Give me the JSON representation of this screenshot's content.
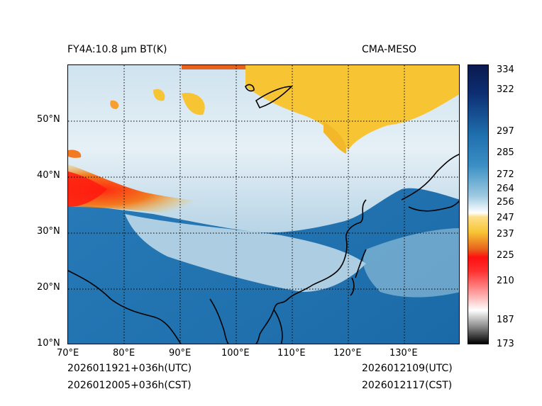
{
  "header": {
    "left_title": "FY4A:10.8 µm BT(K)",
    "right_title": "CMA-MESO"
  },
  "map": {
    "lon_ticks": [
      "70°E",
      "80°E",
      "90°E",
      "100°E",
      "110°E",
      "120°E",
      "130°E"
    ],
    "lat_ticks": [
      "50°N",
      "40°N",
      "30°N",
      "20°N",
      "10°N"
    ],
    "lon_range": [
      70,
      140
    ],
    "lat_range": [
      10,
      60
    ]
  },
  "colorbar": {
    "ticks": [
      "334",
      "322",
      "297",
      "285",
      "272",
      "264",
      "256",
      "247",
      "237",
      "225",
      "210",
      "187",
      "173"
    ],
    "colors": {
      "top": "#0a1a4f",
      "blue": "#1f6fae",
      "light_blue": "#9ecae1",
      "white": "#ffffff",
      "yellow": "#f7c434",
      "orange": "#e8641c",
      "red": "#ff1010",
      "pink": "#ffc0c0",
      "gray": "#888888",
      "black": "#000000"
    }
  },
  "footer": {
    "left_line1": "2026011921+036h(UTC)",
    "left_line2": "2026012005+036h(CST)",
    "right_line1": "2026012109(UTC)",
    "right_line2": "2026012117(CST)"
  }
}
